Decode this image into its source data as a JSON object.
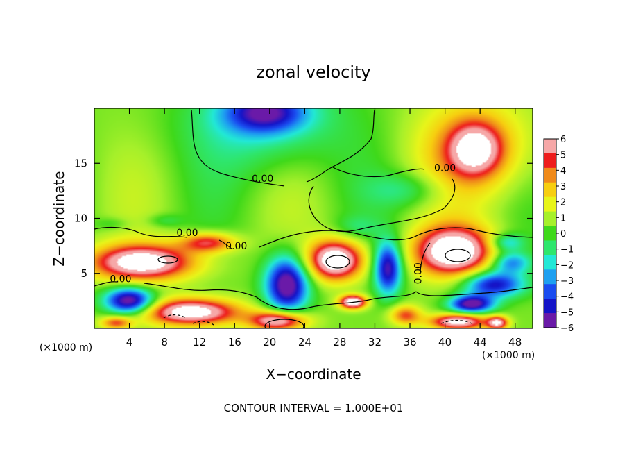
{
  "chart_data": {
    "type": "heatmap",
    "title": "zonal velocity",
    "xlabel": "X−coordinate",
    "ylabel": "Z−coordinate",
    "x_unit_left": "(×1000 m)",
    "x_unit_right": "(×1000 m)",
    "footer": "CONTOUR INTERVAL = 1.000E+01",
    "xlim": [
      0,
      50
    ],
    "ylim": [
      0,
      20
    ],
    "x_ticks": [
      "4",
      "8",
      "12",
      "16",
      "20",
      "24",
      "28",
      "32",
      "36",
      "40",
      "44",
      "48"
    ],
    "x_tick_values": [
      4,
      8,
      12,
      16,
      20,
      24,
      28,
      32,
      36,
      40,
      44,
      48
    ],
    "y_ticks": [
      "5",
      "10",
      "15"
    ],
    "y_tick_values": [
      5,
      10,
      15
    ],
    "colorbar": {
      "labels": [
        "6",
        "5",
        "4",
        "3",
        "2",
        "1",
        "0",
        "−1",
        "−2",
        "−3",
        "−4",
        "−5",
        "−6"
      ],
      "values": [
        6,
        5,
        4,
        3,
        2,
        1,
        0,
        -1,
        -2,
        -3,
        -4,
        -5,
        -6
      ],
      "colors": [
        "#f6a8a8",
        "#ee1c1c",
        "#f08a1a",
        "#f7ce10",
        "#e8f51a",
        "#a6f02a",
        "#3fd91a",
        "#2ee66c",
        "#22e8d6",
        "#1ea0f0",
        "#1a4cf0",
        "#1414c8",
        "#6a1aa8"
      ]
    },
    "contour_labels": [
      {
        "text": "0.00",
        "x": 19.2,
        "z": 13.3
      },
      {
        "text": "0.00",
        "x": 40.0,
        "z": 14.3
      },
      {
        "text": "0.00",
        "x": 10.6,
        "z": 8.4
      },
      {
        "text": "0.00",
        "x": 16.2,
        "z": 7.2
      },
      {
        "text": "0.00",
        "x": 3.0,
        "z": 4.2
      },
      {
        "text": "0.00",
        "x": 37.3,
        "z": 5.0
      }
    ],
    "blobs": [
      {
        "x": 19.5,
        "z": 18.8,
        "rx": 9.0,
        "rz": 4.5,
        "v": -2.5
      },
      {
        "x": 19.5,
        "z": 19.6,
        "rx": 4.5,
        "rz": 1.8,
        "v": -4.8
      },
      {
        "x": 43.5,
        "z": 16.3,
        "rx": 7.0,
        "rz": 4.8,
        "v": 3.0
      },
      {
        "x": 43.5,
        "z": 16.3,
        "rx": 3.0,
        "rz": 2.3,
        "v": 5.0
      },
      {
        "x": 36.0,
        "z": 12.6,
        "rx": 4.5,
        "rz": 1.6,
        "v": -1.8
      },
      {
        "x": 30.0,
        "z": 9.2,
        "rx": 2.5,
        "rz": 1.0,
        "v": -1.2
      },
      {
        "x": 5.5,
        "z": 6.0,
        "rx": 6.0,
        "rz": 1.6,
        "v": 7.5
      },
      {
        "x": 13.0,
        "z": 7.8,
        "rx": 3.2,
        "rz": 0.9,
        "v": 4.8
      },
      {
        "x": 27.5,
        "z": 6.2,
        "rx": 3.2,
        "rz": 1.8,
        "v": 8.0
      },
      {
        "x": 41.0,
        "z": 7.0,
        "rx": 4.5,
        "rz": 2.2,
        "v": 8.0
      },
      {
        "x": 11.0,
        "z": 1.5,
        "rx": 5.5,
        "rz": 1.2,
        "v": 7.5
      },
      {
        "x": 21.0,
        "z": 0.7,
        "rx": 3.2,
        "rz": 0.9,
        "v": 7.0
      },
      {
        "x": 4.0,
        "z": 2.5,
        "rx": 2.8,
        "rz": 1.2,
        "v": -7.5
      },
      {
        "x": 22.0,
        "z": 4.0,
        "rx": 2.5,
        "rz": 2.6,
        "v": -7.5
      },
      {
        "x": 33.5,
        "z": 5.5,
        "rx": 1.6,
        "rz": 2.4,
        "v": -6.5
      },
      {
        "x": 45.5,
        "z": 4.0,
        "rx": 3.5,
        "rz": 1.2,
        "v": -6.0
      },
      {
        "x": 47.5,
        "z": 6.0,
        "rx": 2.3,
        "rz": 1.0,
        "v": -4.0
      },
      {
        "x": 29.5,
        "z": 2.4,
        "rx": 1.5,
        "rz": 0.6,
        "v": 8.0
      },
      {
        "x": 43.0,
        "z": 2.2,
        "rx": 2.5,
        "rz": 0.8,
        "v": -7.0
      },
      {
        "x": 35.5,
        "z": 1.2,
        "rx": 1.8,
        "rz": 0.9,
        "v": 4.0
      },
      {
        "x": 41.5,
        "z": 0.6,
        "rx": 3.2,
        "rz": 0.7,
        "v": 7.0
      },
      {
        "x": 46.0,
        "z": 0.5,
        "rx": 1.2,
        "rz": 0.6,
        "v": 6.0
      },
      {
        "x": 2.5,
        "z": 0.5,
        "rx": 1.8,
        "rz": 0.6,
        "v": 4.0
      },
      {
        "x": 8.0,
        "z": 9.8,
        "rx": 2.0,
        "rz": 0.6,
        "v": -1.2
      },
      {
        "x": 2.0,
        "z": 9.5,
        "rx": 2.0,
        "rz": 0.6,
        "v": -1.0
      },
      {
        "x": 47.0,
        "z": 7.8,
        "rx": 2.0,
        "rz": 0.8,
        "v": -3.0
      }
    ]
  }
}
